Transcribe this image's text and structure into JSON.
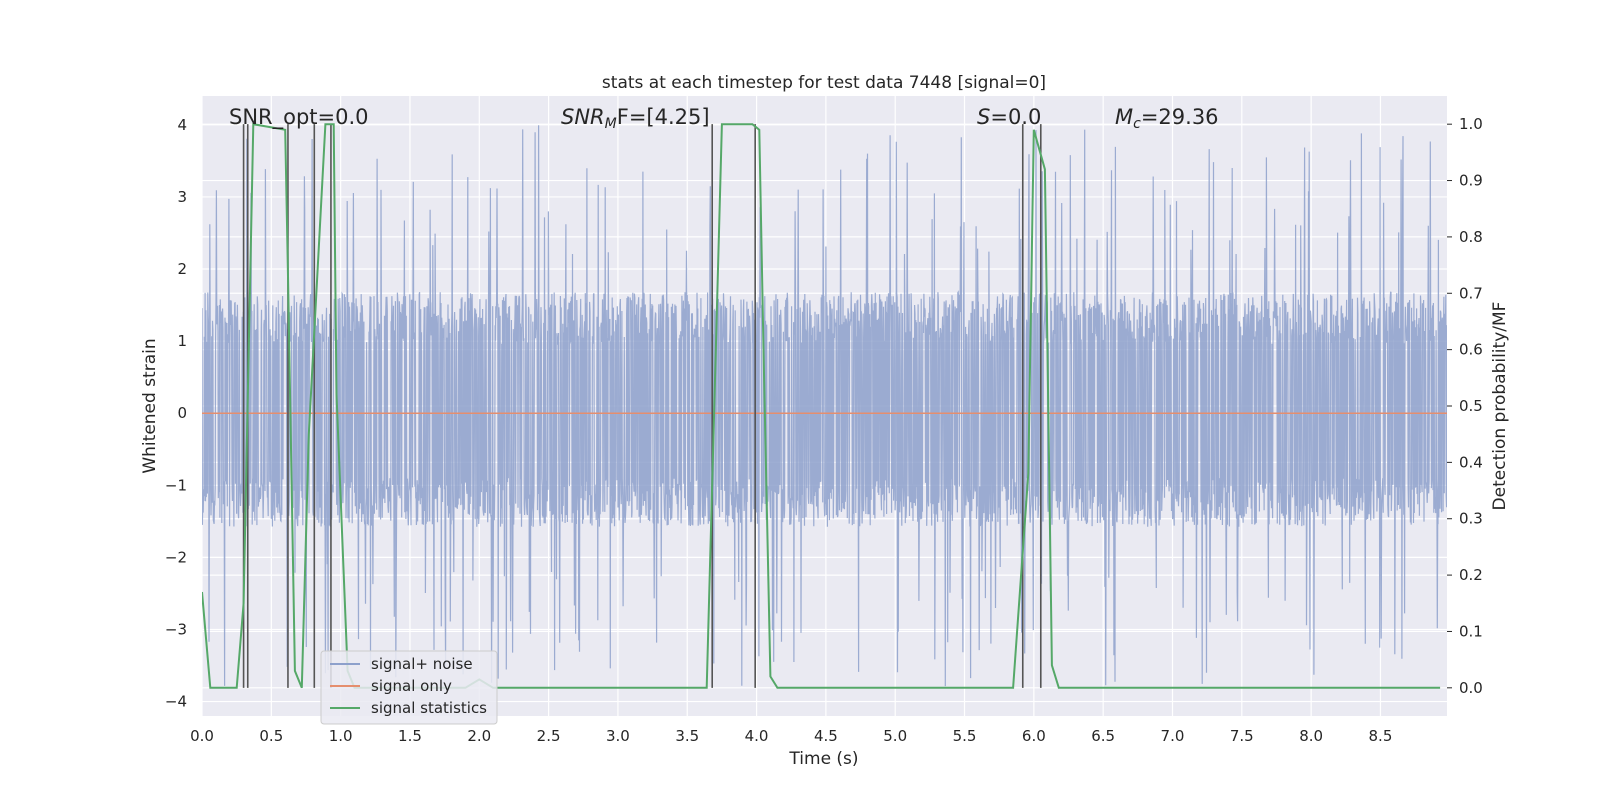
{
  "chart_data": {
    "type": "line",
    "title": "stats at each timestep for test data 7448 [signal=0]",
    "xlabel": "Time (s)",
    "ylabel_left": "Whitened strain",
    "ylabel_right": "Detection probability/MF",
    "xlim": [
      0,
      8.98
    ],
    "ylim_left": [
      -4.2,
      4.4
    ],
    "ylim_right": [
      -0.05,
      1.05
    ],
    "x_ticks": [
      "0.0",
      "0.5",
      "1.0",
      "1.5",
      "2.0",
      "2.5",
      "3.0",
      "3.5",
      "4.0",
      "4.5",
      "5.0",
      "5.5",
      "6.0",
      "6.5",
      "7.0",
      "7.5",
      "8.0",
      "8.5"
    ],
    "y_ticks_left": [
      "−4",
      "−3",
      "−2",
      "−1",
      "0",
      "1",
      "2",
      "3",
      "4"
    ],
    "y_ticks_right": [
      "0.0",
      "0.1",
      "0.2",
      "0.3",
      "0.4",
      "0.5",
      "0.6",
      "0.7",
      "0.8",
      "0.9",
      "1.0"
    ],
    "grid": true,
    "legend_position": "lower-left",
    "annotations": {
      "snr_opt": "SNR_opt=0.0",
      "snr_mf_name": "SNR",
      "snr_mf_sub": "M",
      "snr_mf_rest": "F=[4.25]",
      "s_name": "S",
      "s_rest": "=0.0",
      "mc_name": "M",
      "mc_sub": "c",
      "mc_rest": "=29.36"
    },
    "series": [
      {
        "name": "signal+ noise",
        "color": "#8da0cb",
        "description": "noise",
        "band_envelope": [
          -1.5,
          1.6
        ],
        "spike_range": [
          -3.8,
          4.0
        ]
      },
      {
        "name": "signal only",
        "color": "#e58e6e",
        "values_const": 0.0
      },
      {
        "name": "signal statistics",
        "color": "#55a868",
        "axis": "right",
        "x": [
          0.0,
          0.06,
          0.2,
          0.25,
          0.3,
          0.37,
          0.6,
          0.62,
          0.67,
          0.72,
          0.77,
          0.89,
          0.95,
          0.97,
          1.05,
          1.1,
          1.9,
          2.0,
          2.1,
          3.64,
          3.75,
          3.97,
          4.02,
          4.05,
          4.1,
          4.15,
          5.85,
          5.96,
          6.0,
          6.08,
          6.13,
          6.18,
          8.93
        ],
        "y": [
          0.17,
          0.0,
          0.0,
          0.0,
          0.15,
          1.0,
          0.99,
          0.73,
          0.03,
          0.0,
          0.45,
          1.0,
          1.0,
          0.52,
          0.03,
          0.0,
          0.0,
          0.015,
          0.0,
          0.0,
          1.0,
          1.0,
          0.99,
          0.6,
          0.02,
          0.0,
          0.0,
          0.38,
          0.99,
          0.92,
          0.04,
          0.0,
          0.0
        ]
      }
    ],
    "vertical_markers_x": [
      0.3,
      0.33,
      0.62,
      0.81,
      0.93,
      3.68,
      3.99,
      5.92,
      6.05
    ],
    "colors": {
      "background": "#eaeaf2",
      "grid": "#ffffff",
      "marker": "#555555"
    }
  }
}
